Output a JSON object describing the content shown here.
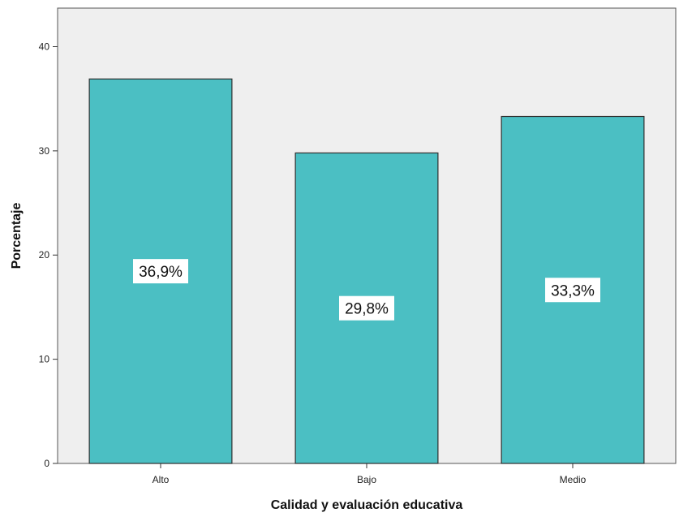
{
  "chart_data": {
    "type": "bar",
    "categories": [
      "Alto",
      "Bajo",
      "Medio"
    ],
    "values": [
      36.9,
      29.8,
      33.3
    ],
    "data_labels": [
      "36,9%",
      "29,8%",
      "33,3%"
    ],
    "xlabel": "Calidad y evaluación educativa",
    "ylabel": "Porcentaje",
    "ylim": [
      0,
      43.7
    ],
    "yticks": [
      0,
      10,
      20,
      30,
      40
    ],
    "grid": false,
    "colors": {
      "bar": "#4bbfc3",
      "bar_stroke": "#2f2f2f",
      "plot_background": "#efefef",
      "label_box": "#ffffff"
    }
  }
}
